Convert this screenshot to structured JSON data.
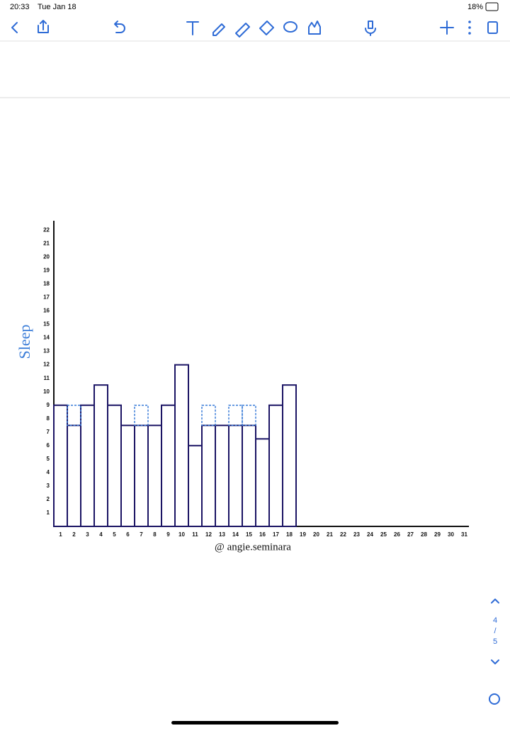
{
  "status_bar": {
    "time": "20:33",
    "date": "Tue Jan 18",
    "battery": "18%"
  },
  "page_indicator": {
    "current": "4",
    "separator": "/",
    "total": "5"
  },
  "chart_data": {
    "type": "bar",
    "ylabel": "Sleep",
    "caption": "@ angie.seminara",
    "categories": [
      "1",
      "2",
      "3",
      "4",
      "5",
      "6",
      "7",
      "8",
      "9",
      "10",
      "11",
      "12",
      "13",
      "14",
      "15",
      "16",
      "17",
      "18",
      "19",
      "20",
      "21",
      "22",
      "23",
      "24",
      "25",
      "26",
      "27",
      "28",
      "29",
      "30",
      "31"
    ],
    "series": [
      {
        "color": "#1b1464",
        "values": [
          9,
          7.5,
          9,
          10.5,
          9,
          7.5,
          7.5,
          7.5,
          9,
          12,
          6,
          7.5,
          7.5,
          7.5,
          7.5,
          6.5,
          9,
          10.5,
          null,
          null,
          null,
          null,
          null,
          null,
          null,
          null,
          null,
          null,
          null,
          null,
          null
        ]
      },
      {
        "color": "#3b7dd8",
        "style": "dashed",
        "stacked": true,
        "values": [
          null,
          1.5,
          null,
          null,
          null,
          null,
          1.5,
          null,
          null,
          null,
          null,
          1.5,
          null,
          1.5,
          1.5,
          null,
          null,
          null,
          null,
          null,
          null,
          null,
          null,
          null,
          null,
          null,
          null,
          null,
          null,
          null,
          null
        ]
      }
    ],
    "ylim": [
      0,
      22.7
    ],
    "yticks": [
      1,
      2,
      3,
      4,
      5,
      6,
      7,
      8,
      9,
      10,
      11,
      12,
      13,
      14,
      15,
      16,
      17,
      18,
      19,
      20,
      21,
      22
    ]
  }
}
